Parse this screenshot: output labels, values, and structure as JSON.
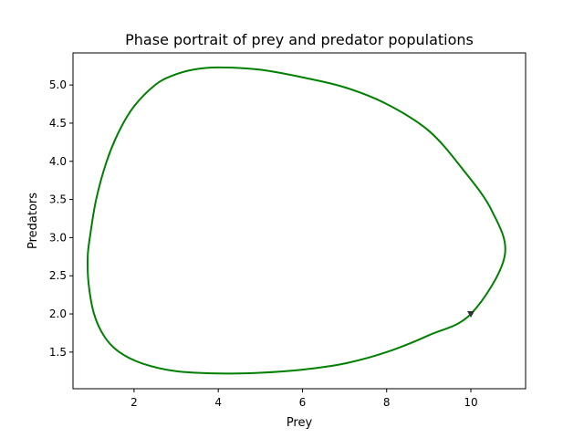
{
  "chart_data": {
    "type": "line",
    "title": "Phase portrait of prey and predator populations",
    "xlabel": "Prey",
    "ylabel": "Predators",
    "xlim": [
      0.55,
      11.3
    ],
    "ylim": [
      1.02,
      5.42
    ],
    "x_ticks": [
      2,
      4,
      6,
      8,
      10
    ],
    "x_tick_labels": [
      "2",
      "4",
      "6",
      "8",
      "10"
    ],
    "y_ticks": [
      1.5,
      2.0,
      2.5,
      3.0,
      3.5,
      4.0,
      4.5,
      5.0
    ],
    "y_tick_labels": [
      "1.5",
      "2.0",
      "2.5",
      "3.0",
      "3.5",
      "4.0",
      "4.5",
      "5.0"
    ],
    "grid": false,
    "legend": "none",
    "series": [
      {
        "color": "#008000",
        "points": [
          [
            10.0,
            2.0
          ],
          [
            10.8,
            2.75
          ],
          [
            10.5,
            3.35
          ],
          [
            9.8,
            3.9
          ],
          [
            9.0,
            4.4
          ],
          [
            8.0,
            4.75
          ],
          [
            7.0,
            4.97
          ],
          [
            6.0,
            5.1
          ],
          [
            5.0,
            5.2
          ],
          [
            4.0,
            5.23
          ],
          [
            3.4,
            5.2
          ],
          [
            2.9,
            5.12
          ],
          [
            2.5,
            5.0
          ],
          [
            2.0,
            4.72
          ],
          [
            1.65,
            4.4
          ],
          [
            1.35,
            4.0
          ],
          [
            1.1,
            3.5
          ],
          [
            0.95,
            3.0
          ],
          [
            0.9,
            2.75
          ],
          [
            0.92,
            2.4
          ],
          [
            1.05,
            2.0
          ],
          [
            1.3,
            1.7
          ],
          [
            1.65,
            1.5
          ],
          [
            2.2,
            1.35
          ],
          [
            3.0,
            1.25
          ],
          [
            4.0,
            1.22
          ],
          [
            5.0,
            1.23
          ],
          [
            6.0,
            1.27
          ],
          [
            7.0,
            1.35
          ],
          [
            8.0,
            1.5
          ],
          [
            9.0,
            1.72
          ],
          [
            10.0,
            2.0
          ]
        ]
      }
    ],
    "start_marker": {
      "x": 10.0,
      "y": 2.0,
      "color": "#333333",
      "shape": "triangle-down"
    }
  }
}
